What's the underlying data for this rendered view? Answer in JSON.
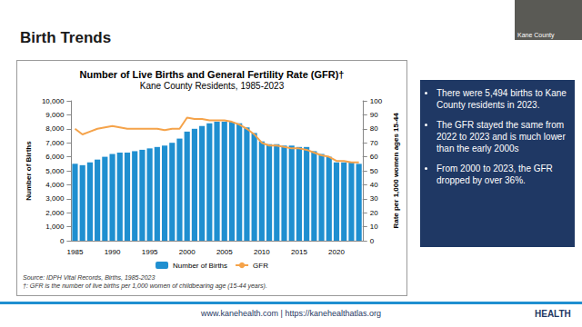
{
  "slide": {
    "title": "Birth Trends",
    "bullets": [
      "There were 5,494 births to Kane County residents in 2023.",
      "The GFR stayed the same from 2022 to 2023 and is much lower than the early 2000s",
      "From 2000 to 2023, the GFR dropped by over 36%."
    ],
    "source": "Source: IDPH Vital Records, Births, 1985-2023",
    "footnote": "†: GFR is the number of live births per 1,000 women of childbearing age (15-44 years).",
    "footer": "www.kanehealth.com | https://kanehealthatlas.org",
    "video_label": "Kane County",
    "logo": "HEALTH"
  },
  "chart_data": {
    "type": "bar",
    "title": "Number of Live Births and General Fertility Rate (GFR)†",
    "subtitle": "Kane County Residents, 1985-2023",
    "y_label": "Number of Births",
    "y2_label": "Rate per 1,000 women ages 15-44",
    "categories": [
      "1985",
      null,
      null,
      null,
      null,
      "1990",
      null,
      null,
      null,
      null,
      "1995",
      null,
      null,
      null,
      null,
      "2000",
      null,
      null,
      null,
      null,
      "2005",
      null,
      null,
      null,
      null,
      "2010",
      null,
      null,
      null,
      null,
      "2015",
      null,
      null,
      null,
      null,
      "2020",
      null,
      null,
      null
    ],
    "series": [
      {
        "name": "Number of Births",
        "type": "bar",
        "color": "#1f8fd0",
        "values": [
          5500,
          5400,
          5600,
          5800,
          6000,
          6200,
          6300,
          6300,
          6400,
          6500,
          6600,
          6700,
          6800,
          7000,
          7300,
          7800,
          8000,
          8200,
          8400,
          8500,
          8500,
          8500,
          8400,
          8100,
          7700,
          7100,
          6900,
          6900,
          6800,
          6800,
          6700,
          6700,
          6400,
          6200,
          6000,
          5600,
          5600,
          5600,
          5494
        ]
      },
      {
        "name": "GFR",
        "type": "line",
        "axis": "y2",
        "color": "#f5a34a",
        "values": [
          80,
          76,
          78,
          80,
          81,
          82,
          81,
          80,
          80,
          80,
          80,
          80,
          79,
          80,
          80,
          88,
          87,
          87,
          86,
          86,
          86,
          85,
          83,
          80,
          76,
          70,
          68,
          68,
          67,
          66,
          66,
          65,
          63,
          61,
          60,
          57,
          57,
          56,
          56
        ]
      }
    ],
    "ylim": [
      0,
      10000
    ],
    "yticks": [
      0,
      {
        "value": 1000,
        "label": "1,000"
      },
      {
        "value": 2000,
        "label": "2,000"
      },
      {
        "value": 3000,
        "label": "3,000"
      },
      {
        "value": 4000,
        "label": "4,000"
      },
      {
        "value": 5000,
        "label": "5,000"
      },
      {
        "value": 6000,
        "label": "6,000"
      },
      {
        "value": 7000,
        "label": "7,000"
      },
      {
        "value": 8000,
        "label": "8,000"
      },
      {
        "value": 9000,
        "label": "9,000"
      },
      {
        "value": 10000,
        "label": "10,000"
      }
    ],
    "y2lim": [
      0,
      100
    ],
    "y2ticks": [
      0,
      10,
      20,
      30,
      40,
      50,
      60,
      70,
      80,
      90,
      100
    ],
    "grid": false,
    "legend": "bottom"
  }
}
